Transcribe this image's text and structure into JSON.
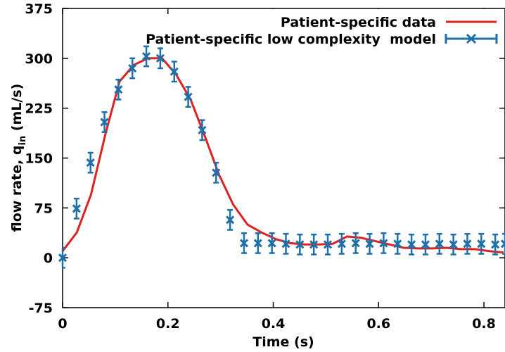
{
  "chart_data": {
    "type": "line",
    "xlabel": "Time (s)",
    "ylabel": {
      "main": "flow rate, q",
      "sub": "in",
      "unit": " (mL/s)"
    },
    "xlim": [
      0,
      0.84
    ],
    "ylim": [
      -75,
      375
    ],
    "x_ticks": [
      0,
      0.2,
      0.4,
      0.6,
      0.8
    ],
    "x_tick_labels": [
      "0",
      "0.2",
      "0.4",
      "0.6",
      "0.8"
    ],
    "y_ticks": [
      -75,
      0,
      75,
      150,
      225,
      300,
      375
    ],
    "y_tick_labels": [
      "-75",
      "0",
      "75",
      "150",
      "225",
      "300",
      "375"
    ],
    "grid": false,
    "legend_position": "top-right",
    "series": [
      {
        "name": "Patient-specific data",
        "color": "#dd2222",
        "style": "line",
        "x": [
          0,
          0.027,
          0.054,
          0.081,
          0.108,
          0.135,
          0.162,
          0.189,
          0.216,
          0.243,
          0.27,
          0.297,
          0.324,
          0.351,
          0.378,
          0.405,
          0.432,
          0.459,
          0.486,
          0.513,
          0.54,
          0.567,
          0.594,
          0.621,
          0.648,
          0.675,
          0.702,
          0.729,
          0.756,
          0.783,
          0.81,
          0.837
        ],
        "y": [
          10,
          38,
          95,
          185,
          265,
          290,
          300,
          300,
          275,
          238,
          183,
          125,
          80,
          50,
          38,
          28,
          22,
          20,
          20,
          21,
          32,
          30,
          25,
          20,
          15,
          14,
          14,
          15,
          13,
          13,
          10,
          8
        ]
      },
      {
        "name": "Patient-specific low complexity  model",
        "color": "#1f6fa8",
        "style": "points-errorbars",
        "error": 15,
        "x": [
          0,
          0.0265,
          0.053,
          0.0795,
          0.106,
          0.1325,
          0.159,
          0.1855,
          0.212,
          0.2385,
          0.265,
          0.2915,
          0.318,
          0.3445,
          0.371,
          0.3975,
          0.424,
          0.4505,
          0.477,
          0.5035,
          0.53,
          0.5565,
          0.583,
          0.6095,
          0.636,
          0.6625,
          0.689,
          0.7155,
          0.742,
          0.7685,
          0.795,
          0.8215,
          0.84
        ],
        "y": [
          0,
          74,
          143,
          204,
          253,
          285,
          303,
          300,
          280,
          242,
          192,
          128,
          57,
          22,
          22,
          22,
          21,
          20,
          20,
          20,
          21,
          22,
          21,
          22,
          21,
          20,
          20,
          21,
          20,
          21,
          21,
          20,
          21
        ]
      }
    ]
  }
}
